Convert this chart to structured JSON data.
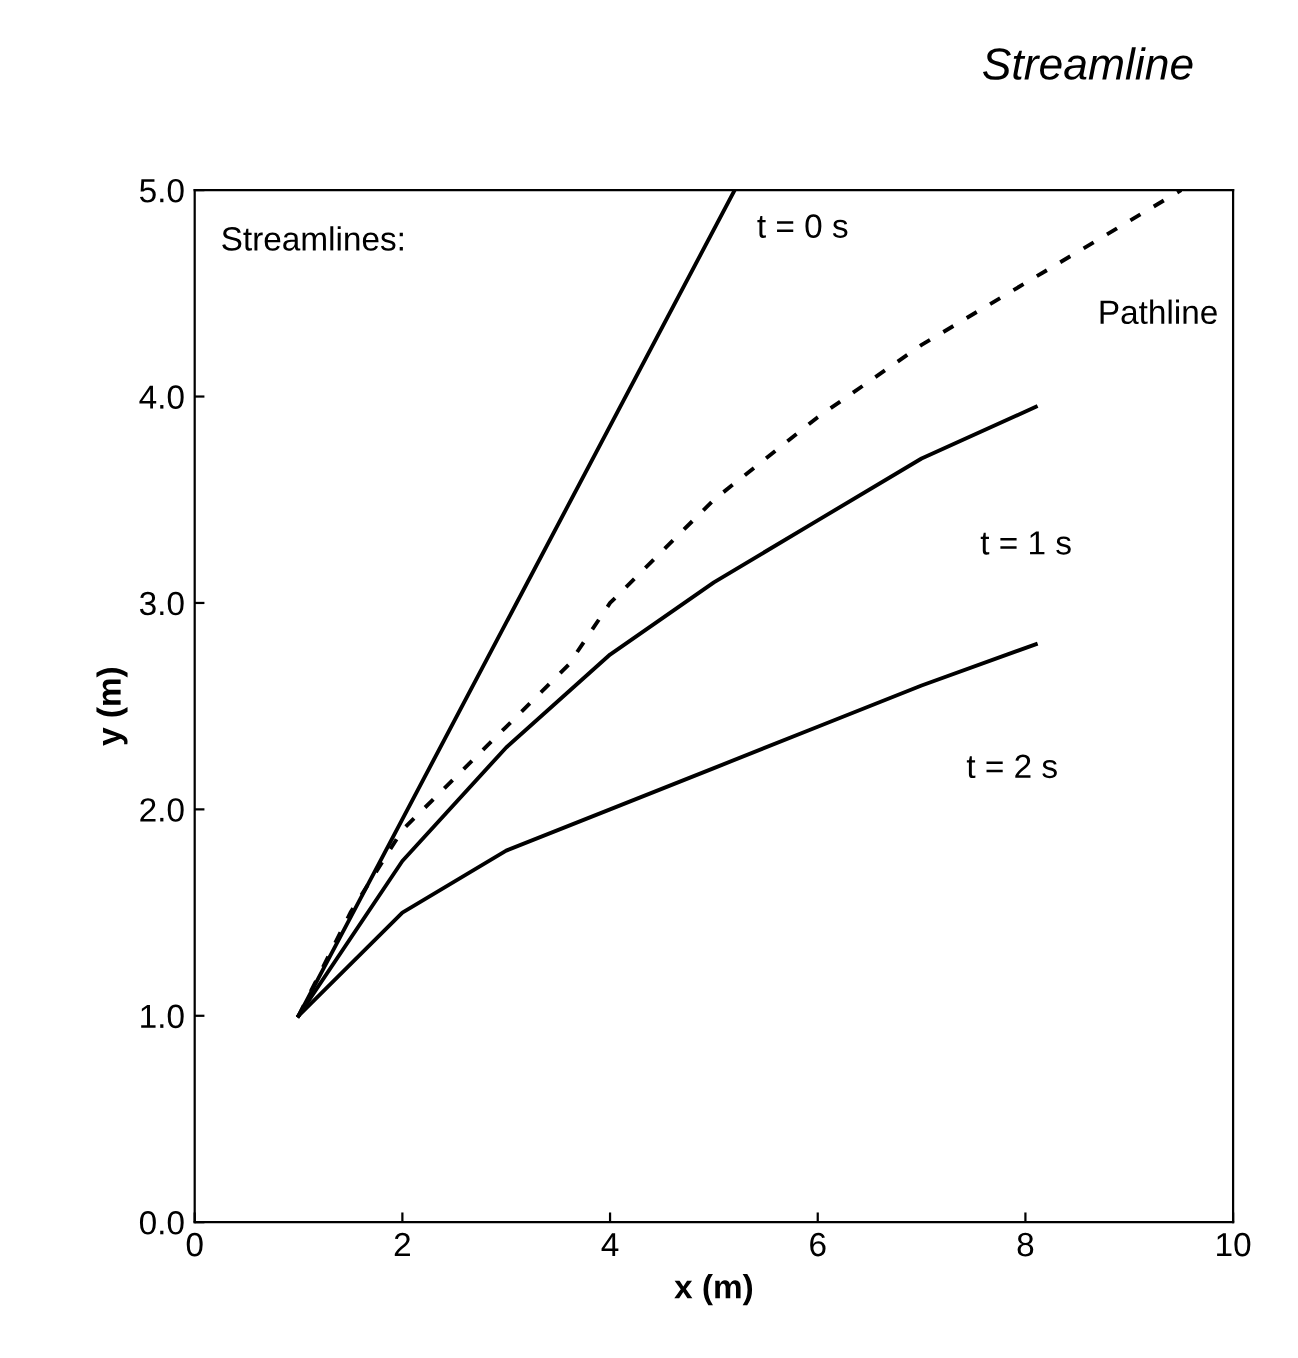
{
  "chart_data": {
    "type": "line",
    "xlabel": "x (m)",
    "ylabel": "y (m)",
    "xlim": [
      0,
      10
    ],
    "xticks": [
      0,
      2,
      4,
      6,
      8,
      10
    ],
    "ylim": [
      0,
      5
    ],
    "yticks": [
      {
        "value": 0,
        "label": "0.0"
      },
      {
        "value": 1,
        "label": "1.0"
      },
      {
        "value": 2,
        "label": "2.0"
      },
      {
        "value": 3,
        "label": "3.0"
      },
      {
        "value": 4,
        "label": "4.0"
      },
      {
        "value": 5,
        "label": "5.0"
      }
    ],
    "grid": false,
    "legend": false,
    "marker": "none",
    "annotations": [
      "Streamline",
      "Streamlines:"
    ],
    "series": [
      {
        "name": "t = 0 s",
        "color": "#000000",
        "line_style": "solid",
        "x": [
          1,
          5.2
        ],
        "values": [
          1,
          5
        ]
      },
      {
        "name": "Pathline",
        "color": "#000000",
        "line_style": "dashed",
        "x": [
          1,
          1.5,
          2,
          3,
          3.6,
          4,
          5,
          6,
          7,
          8,
          9,
          9.5
        ],
        "values": [
          1,
          1.5,
          1.9,
          2.4,
          2.7,
          3.0,
          3.5,
          3.9,
          4.25,
          4.55,
          4.85,
          5.0
        ]
      },
      {
        "name": "t = 1 s",
        "color": "#000000",
        "line_style": "solid",
        "x": [
          1,
          2,
          3,
          4,
          5,
          6,
          7,
          8.1
        ],
        "values": [
          1,
          1.75,
          2.3,
          2.75,
          3.1,
          3.4,
          3.7,
          3.95
        ]
      },
      {
        "name": "t = 2 s",
        "color": "#000000",
        "line_style": "solid",
        "x": [
          1,
          2,
          3,
          4,
          5,
          6,
          7,
          8.1
        ],
        "values": [
          1,
          1.5,
          1.8,
          2.0,
          2.2,
          2.4,
          2.6,
          2.8
        ]
      }
    ]
  }
}
